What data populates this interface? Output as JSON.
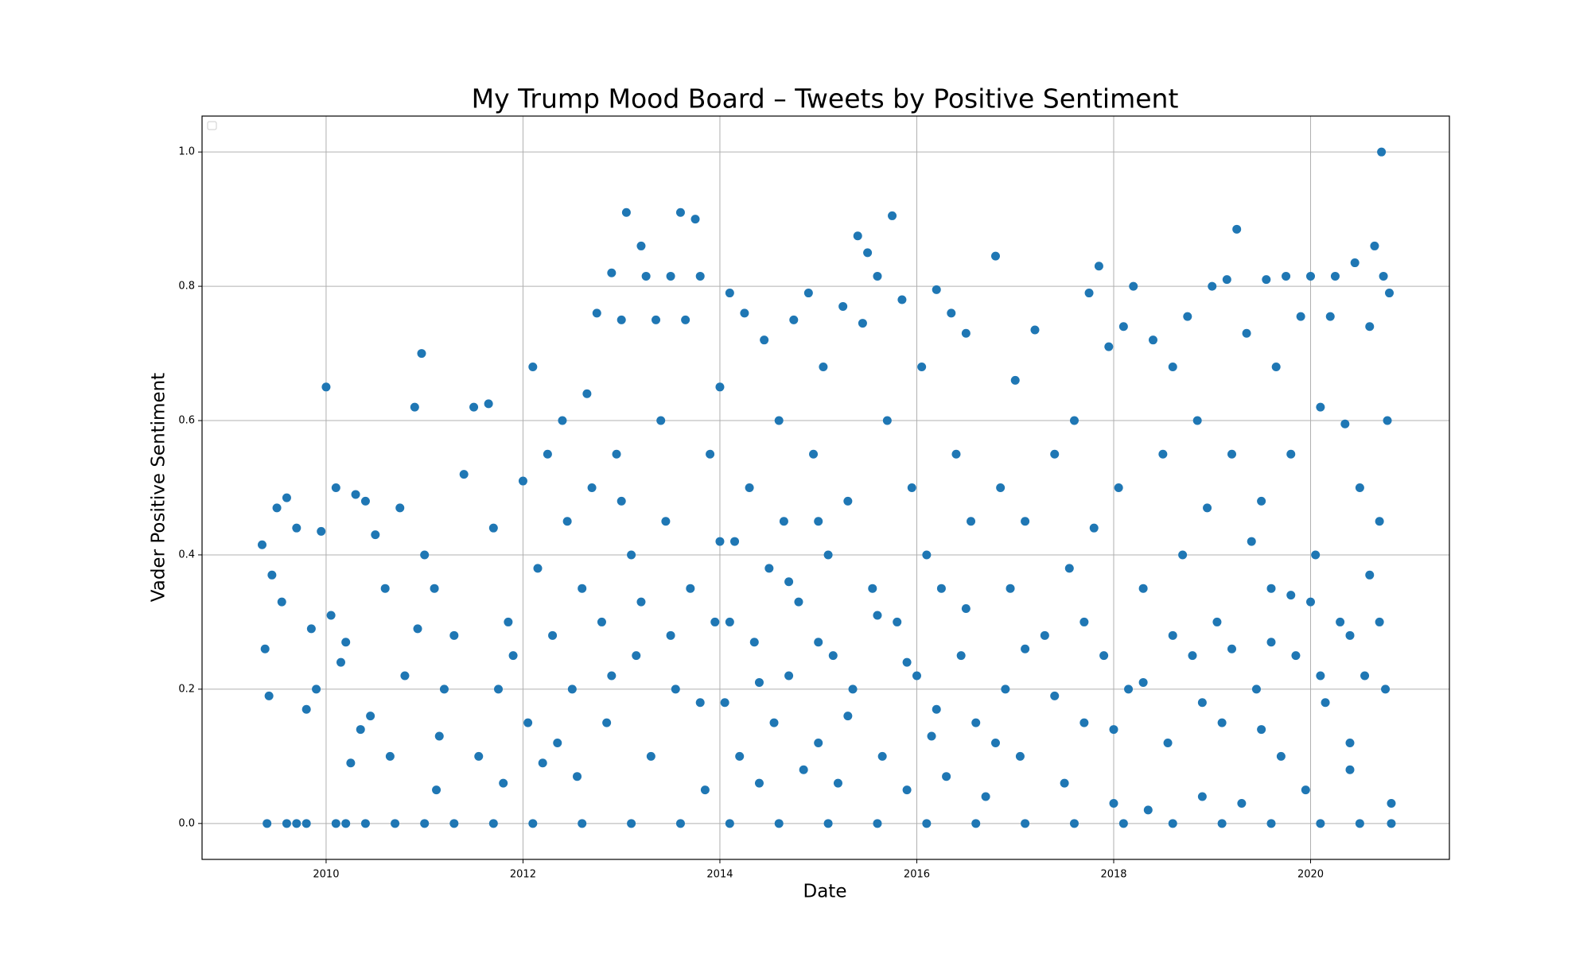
{
  "chart_data": {
    "type": "scatter",
    "title": "My Trump Mood Board – Tweets by Positive Sentiment",
    "x_label": "Date",
    "y_label": "Vader Positive Sentiment",
    "color": "#1f77b4",
    "grid": true,
    "xlim": [
      2008.74,
      2021.41
    ],
    "xticks": [
      2010,
      2012,
      2014,
      2016,
      2018,
      2020
    ],
    "ylim": [
      -0.0535,
      1.0535
    ],
    "yticks": [
      {
        "value": 0,
        "label": "0.0"
      },
      {
        "value": 0.2,
        "label": "0.2"
      },
      {
        "value": 0.4,
        "label": "0.4"
      },
      {
        "value": 0.6,
        "label": "0.6"
      },
      {
        "value": 0.8,
        "label": "0.8"
      },
      {
        "value": 1,
        "label": "1.0"
      }
    ],
    "x": [
      2009.35,
      2009.38,
      2009.42,
      2009.45,
      2009.5,
      2009.55,
      2009.6,
      2009.7,
      2009.8,
      2009.85,
      2009.9,
      2009.95,
      2010.0,
      2010.05,
      2010.1,
      2010.15,
      2010.2,
      2010.25,
      2010.3,
      2010.35,
      2010.4,
      2010.45,
      2010.5,
      2010.6,
      2010.65,
      2010.75,
      2010.8,
      2010.9,
      2010.93,
      2010.97,
      2011.0,
      2011.1,
      2011.12,
      2011.15,
      2011.2,
      2011.3,
      2011.4,
      2011.5,
      2011.55,
      2011.65,
      2011.7,
      2011.75,
      2011.8,
      2011.85,
      2011.9,
      2012.0,
      2012.05,
      2012.1,
      2012.15,
      2012.2,
      2012.25,
      2012.3,
      2012.35,
      2012.4,
      2012.45,
      2012.5,
      2012.55,
      2012.6,
      2012.65,
      2012.7,
      2012.75,
      2012.8,
      2012.85,
      2012.9,
      2012.95,
      2013.0,
      2013.05,
      2013.1,
      2013.15,
      2013.2,
      2013.25,
      2013.3,
      2013.35,
      2013.4,
      2013.45,
      2013.5,
      2013.55,
      2013.6,
      2013.65,
      2013.7,
      2013.75,
      2013.8,
      2013.85,
      2013.9,
      2013.95,
      2014.0,
      2014.05,
      2014.1,
      2014.15,
      2014.2,
      2014.25,
      2014.3,
      2014.35,
      2014.4,
      2014.45,
      2014.5,
      2014.55,
      2014.6,
      2014.65,
      2014.7,
      2014.75,
      2014.8,
      2014.85,
      2014.9,
      2014.95,
      2015.0,
      2015.05,
      2015.1,
      2015.15,
      2015.2,
      2015.25,
      2015.3,
      2015.35,
      2015.4,
      2015.45,
      2015.5,
      2015.55,
      2015.6,
      2015.65,
      2015.7,
      2015.75,
      2015.8,
      2015.85,
      2015.9,
      2015.95,
      2016.0,
      2016.05,
      2016.1,
      2016.15,
      2016.2,
      2016.25,
      2016.3,
      2016.35,
      2016.4,
      2016.45,
      2016.5,
      2016.55,
      2016.6,
      2016.7,
      2016.8,
      2016.85,
      2016.9,
      2016.95,
      2017.0,
      2017.05,
      2017.1,
      2017.2,
      2017.3,
      2017.4,
      2017.5,
      2017.55,
      2017.6,
      2017.7,
      2017.75,
      2017.8,
      2017.85,
      2017.9,
      2017.95,
      2018.0,
      2018.05,
      2018.1,
      2018.15,
      2018.2,
      2018.3,
      2018.35,
      2018.4,
      2018.5,
      2018.55,
      2018.6,
      2018.7,
      2018.75,
      2018.8,
      2018.85,
      2018.9,
      2018.95,
      2019.0,
      2019.05,
      2019.1,
      2019.15,
      2019.2,
      2019.25,
      2019.3,
      2019.35,
      2019.4,
      2019.45,
      2019.5,
      2019.55,
      2019.6,
      2019.65,
      2019.7,
      2019.75,
      2019.8,
      2019.85,
      2019.9,
      2019.95,
      2020.0,
      2020.05,
      2020.1,
      2020.15,
      2020.2,
      2020.25,
      2020.3,
      2020.35,
      2020.4,
      2020.45,
      2020.5,
      2020.55,
      2020.6,
      2020.65,
      2020.7,
      2020.72,
      2020.74,
      2020.76,
      2020.78,
      2020.8,
      2020.82,
      2020.6,
      2020.4,
      2020.0,
      2019.6,
      2009.4,
      2009.6,
      2009.8,
      2010.1,
      2010.4,
      2010.7,
      2011.0,
      2011.3,
      2011.7,
      2012.1,
      2012.6,
      2013.1,
      2013.6,
      2014.1,
      2014.6,
      2015.1,
      2015.6,
      2016.1,
      2016.6,
      2017.1,
      2017.6,
      2018.1,
      2018.6,
      2019.1,
      2019.6,
      2020.1,
      2020.5,
      2020.82,
      2009.7,
      2010.2,
      2012.9,
      2013.2,
      2013.5,
      2013.8,
      2014.1,
      2014.4,
      2014.7,
      2015.0,
      2015.3,
      2015.6,
      2015.9,
      2016.2,
      2016.5,
      2016.8,
      2017.1,
      2017.4,
      2017.7,
      2018.0,
      2018.3,
      2018.6,
      2018.9,
      2019.2,
      2019.5,
      2019.8,
      2020.1,
      2020.4,
      2020.7,
      2013.0,
      2014.0,
      2015.0
    ],
    "values": [
      0.415,
      0.26,
      0.19,
      0.37,
      0.47,
      0.33,
      0.485,
      0.44,
      0.17,
      0.29,
      0.2,
      0.435,
      0.65,
      0.31,
      0.5,
      0.24,
      0.27,
      0.09,
      0.49,
      0.14,
      0.48,
      0.16,
      0.43,
      0.35,
      0.1,
      0.47,
      0.22,
      0.62,
      0.29,
      0.7,
      0.4,
      0.35,
      0.05,
      0.13,
      0.2,
      0.28,
      0.52,
      0.62,
      0.1,
      0.625,
      0.44,
      0.2,
      0.06,
      0.3,
      0.25,
      0.51,
      0.15,
      0.68,
      0.38,
      0.09,
      0.55,
      0.28,
      0.12,
      0.6,
      0.45,
      0.2,
      0.07,
      0.35,
      0.64,
      0.5,
      0.76,
      0.3,
      0.15,
      0.82,
      0.55,
      0.75,
      0.91,
      0.4,
      0.25,
      0.86,
      0.815,
      0.1,
      0.75,
      0.6,
      0.45,
      0.815,
      0.2,
      0.91,
      0.75,
      0.35,
      0.9,
      0.815,
      0.05,
      0.55,
      0.3,
      0.65,
      0.18,
      0.79,
      0.42,
      0.1,
      0.76,
      0.5,
      0.27,
      0.06,
      0.72,
      0.38,
      0.15,
      0.6,
      0.45,
      0.22,
      0.75,
      0.33,
      0.08,
      0.79,
      0.55,
      0.12,
      0.68,
      0.4,
      0.25,
      0.06,
      0.77,
      0.48,
      0.2,
      0.875,
      0.745,
      0.85,
      0.35,
      0.815,
      0.1,
      0.6,
      0.905,
      0.3,
      0.78,
      0.05,
      0.5,
      0.22,
      0.68,
      0.4,
      0.13,
      0.795,
      0.35,
      0.07,
      0.76,
      0.55,
      0.25,
      0.73,
      0.45,
      0.15,
      0.04,
      0.845,
      0.5,
      0.2,
      0.35,
      0.66,
      0.1,
      0.45,
      0.735,
      0.28,
      0.55,
      0.06,
      0.38,
      0.6,
      0.15,
      0.79,
      0.44,
      0.83,
      0.25,
      0.71,
      0.03,
      0.5,
      0.74,
      0.2,
      0.8,
      0.35,
      0.02,
      0.72,
      0.55,
      0.12,
      0.68,
      0.4,
      0.755,
      0.25,
      0.6,
      0.04,
      0.47,
      0.8,
      0.3,
      0.15,
      0.81,
      0.55,
      0.885,
      0.03,
      0.73,
      0.42,
      0.2,
      0.48,
      0.81,
      0.35,
      0.68,
      0.1,
      0.815,
      0.55,
      0.25,
      0.755,
      0.05,
      0.815,
      0.4,
      0.62,
      0.18,
      0.755,
      0.815,
      0.3,
      0.595,
      0.08,
      0.835,
      0.5,
      0.22,
      0.74,
      0.86,
      0.45,
      1.0,
      0.815,
      0.2,
      0.6,
      0.79,
      0.03,
      0.37,
      0.28,
      0.33,
      0.27,
      0,
      0,
      0,
      0,
      0,
      0,
      0,
      0,
      0,
      0,
      0,
      0,
      0,
      0,
      0,
      0,
      0,
      0,
      0,
      0,
      0,
      0,
      0,
      0,
      0,
      0,
      0,
      0,
      0,
      0,
      0.22,
      0.33,
      0.28,
      0.18,
      0.3,
      0.21,
      0.36,
      0.27,
      0.16,
      0.31,
      0.24,
      0.17,
      0.32,
      0.12,
      0.26,
      0.19,
      0.3,
      0.14,
      0.21,
      0.28,
      0.18,
      0.26,
      0.14,
      0.34,
      0.22,
      0.12,
      0.3,
      0.48,
      0.42,
      0.45
    ]
  }
}
